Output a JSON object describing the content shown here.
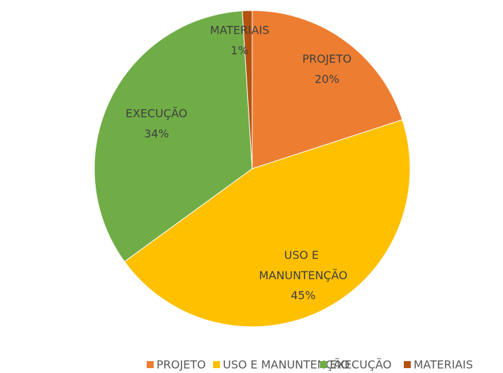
{
  "chart_data": {
    "type": "pie",
    "categories": [
      "PROJETO",
      "USO E MANUNTENÇÃO",
      "EXECUÇÃO",
      "MATERIAIS"
    ],
    "values": [
      20,
      45,
      34,
      1
    ],
    "value_labels": [
      "20%",
      "45%",
      "34%",
      "1%"
    ],
    "colors": [
      "#ed7d31",
      "#ffc000",
      "#70ad47",
      "#b4530f"
    ],
    "legend": "bottom"
  }
}
